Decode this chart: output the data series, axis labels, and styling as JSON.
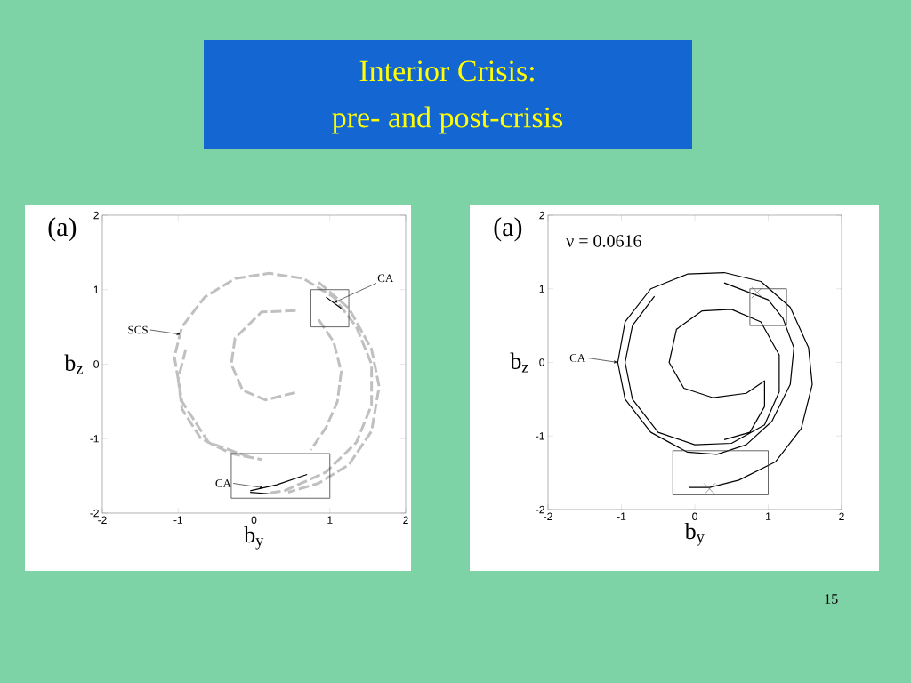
{
  "chart_data": [
    {
      "type": "line",
      "title": "Interior Crisis:",
      "subtitle": "pre- and post-crisis",
      "xlabel": "b$_{y}$",
      "ylabel": "b$_{z}$",
      "xlim": [
        -2,
        2
      ],
      "ylim": [
        -2,
        2
      ],
      "xticks": [
        -2,
        -1,
        0,
        1,
        2
      ],
      "yticks": [
        -2,
        -1,
        0,
        1,
        2
      ],
      "grid": false,
      "series": [
        {
          "type": "line",
          "line_style": "dashed",
          "color": "#c0c0c0",
          "x": [
            -0.05,
            -0.6,
            -0.95,
            -1.05,
            -0.95,
            -0.65,
            -0.25,
            0.2,
            0.65,
            1.05,
            1.35,
            1.55,
            1.55,
            1.35,
            0.95,
            0.4,
            0.2,
            null,
            -0.9,
            -1.0,
            -0.95,
            -0.7,
            -0.3,
            0.1,
            null,
            0.85,
            1.25,
            1.55,
            1.65,
            1.55,
            1.25,
            0.85,
            0.45,
            null,
            0.55,
            0.1,
            -0.25,
            -0.3,
            -0.15,
            0.15,
            0.55,
            null,
            0.85,
            1.05,
            1.15,
            1.1,
            0.95,
            0.75
          ],
          "values": [
            -1.25,
            -1.05,
            -0.5,
            0.1,
            0.5,
            0.9,
            1.15,
            1.22,
            1.15,
            0.9,
            0.5,
            0.0,
            -0.55,
            -1.05,
            -1.45,
            -1.7,
            -1.73,
            null,
            0.2,
            -0.2,
            -0.6,
            -1.0,
            -1.2,
            -1.28,
            null,
            1.1,
            0.75,
            0.2,
            -0.3,
            -0.9,
            -1.35,
            -1.6,
            -1.72,
            null,
            0.72,
            0.7,
            0.35,
            0.0,
            -0.35,
            -0.48,
            -0.38,
            null,
            0.6,
            0.3,
            -0.1,
            -0.5,
            -0.85,
            -1.15
          ]
        },
        {
          "type": "line",
          "color": "#000000",
          "x": [
            0.95,
            1.15,
            null,
            -0.05,
            0.3,
            0.7,
            null,
            -0.05,
            0.2
          ],
          "values": [
            0.9,
            0.75,
            null,
            -1.7,
            -1.62,
            -1.48,
            null,
            -1.72,
            -1.74
          ]
        }
      ],
      "annotations": [
        "(a)",
        {
          "text": "CA",
          "x": 1.05,
          "y": 0.825
        },
        {
          "text": "SCS",
          "x": -0.97,
          "y": 0.4
        },
        {
          "text": "CA",
          "x": 0.125,
          "y": -1.66
        }
      ]
    },
    {
      "type": "line",
      "xlabel": "b$_{y}$",
      "ylabel": "b$_{z}$",
      "xlim": [
        -2,
        2
      ],
      "ylim": [
        -2,
        2
      ],
      "xticks": [
        -2,
        -1,
        0,
        1,
        2
      ],
      "yticks": [
        -2,
        -1,
        0,
        1,
        2
      ],
      "grid": false,
      "series": [
        {
          "type": "line",
          "color": "#000000",
          "x": [
            -0.08,
            0.2,
            0.6,
            1.1,
            1.45,
            1.6,
            1.55,
            1.3,
            0.9,
            0.4,
            -0.1,
            -0.6,
            -0.95,
            -1.05,
            -0.95,
            -0.6,
            -0.1,
            0.3,
            0.7,
            1.05,
            1.3,
            1.35,
            1.2,
            1.0,
            0.4,
            null,
            0.5,
            0.9,
            1.15,
            1.15,
            0.95,
            0.5,
            0.0,
            -0.5,
            -0.85,
            -0.95,
            -0.85,
            -0.55,
            null,
            0.5,
            0.1,
            -0.25,
            -0.35,
            -0.15,
            0.25,
            0.7,
            0.95,
            0.95,
            0.75,
            0.4
          ],
          "values": [
            -1.7,
            -1.7,
            -1.6,
            -1.35,
            -0.9,
            -0.3,
            0.2,
            0.75,
            1.1,
            1.22,
            1.2,
            1.0,
            0.55,
            0.0,
            -0.5,
            -0.95,
            -1.22,
            -1.25,
            -1.12,
            -0.8,
            -0.3,
            0.2,
            0.6,
            0.85,
            1.08,
            null,
            0.72,
            0.55,
            0.1,
            -0.4,
            -0.85,
            -1.1,
            -1.12,
            -0.95,
            -0.5,
            0.0,
            0.5,
            0.9,
            null,
            0.72,
            0.7,
            0.45,
            0.0,
            -0.35,
            -0.48,
            -0.42,
            -0.25,
            -0.6,
            -0.95,
            -1.05
          ]
        },
        {
          "type": "scatter",
          "marker": "cross",
          "color": "#555555",
          "x": [
            0.85,
            0.2
          ],
          "values": [
            0.95,
            -1.72
          ]
        }
      ],
      "annotations": [
        "(a)",
        "ν = 0.0616",
        "15",
        {
          "text": "CA",
          "x": -1.05,
          "y": 0.0
        }
      ]
    }
  ]
}
